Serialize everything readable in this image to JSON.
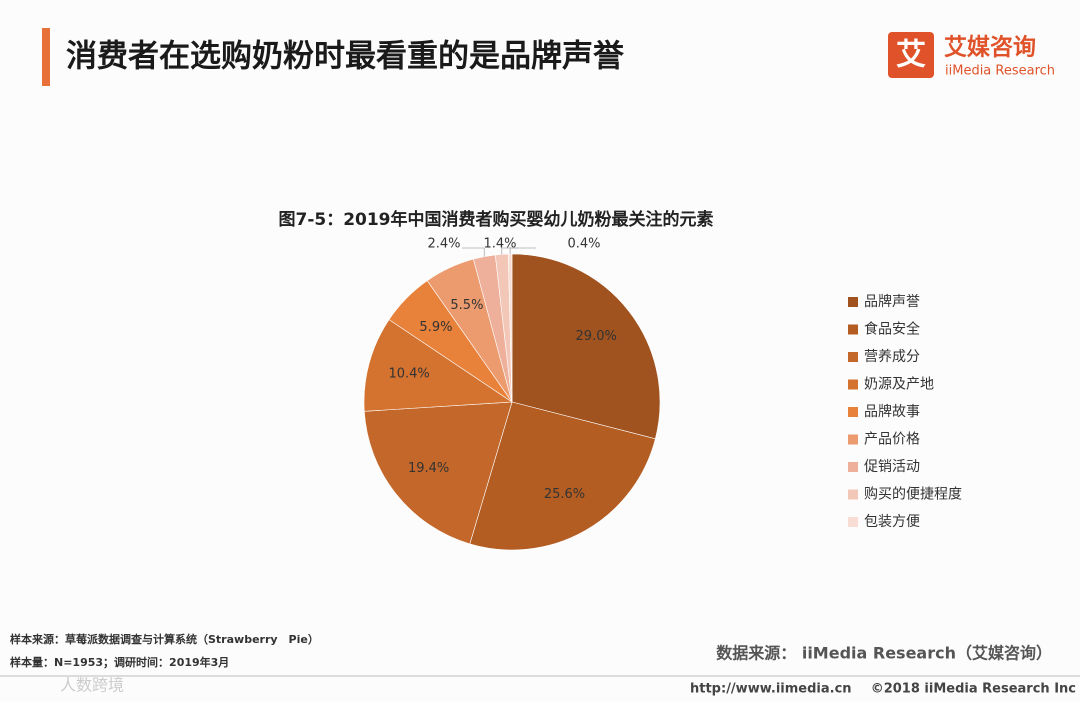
{
  "page": {
    "title": "消费者在选购奶粉时最看重的是品牌声誉",
    "logo_mark": "艾",
    "logo_name": "艾媒咨询",
    "logo_en": "iiMedia Research",
    "note_sample": "样本来源：草莓派数据调查与计算系统（Strawberry　Pie）",
    "note_size": "样本量：N=1953；调研时间：2019年3月",
    "source": "数据来源：  iiMedia Research（艾媒咨询）",
    "url": "http://www.iimedia.cn",
    "copyright": "©2018  iiMedia Research  Inc",
    "watermark": "人数跨境"
  },
  "chart_data": {
    "type": "pie",
    "title": "图7-5：2019年中国消费者购买婴幼儿奶粉最关注的元素",
    "categories": [
      "品牌声誉",
      "食品安全",
      "营养成分",
      "奶源及产地",
      "品牌故事",
      "产品价格",
      "促销活动",
      "购买的便捷程度",
      "包装方便"
    ],
    "values": [
      29.0,
      25.6,
      19.4,
      10.4,
      5.9,
      5.5,
      2.4,
      1.4,
      0.4
    ],
    "value_labels": [
      "29.0%",
      "25.6%",
      "19.4%",
      "10.4%",
      "5.9%",
      "5.5%",
      "2.4%",
      "1.4%",
      "0.4%"
    ],
    "colors": [
      "#a0521f",
      "#b35d22",
      "#c4672a",
      "#d4722f",
      "#e8813a",
      "#eb9b6e",
      "#eeb09a",
      "#f3c7b8",
      "#f7ddd4"
    ],
    "legend": "right"
  }
}
